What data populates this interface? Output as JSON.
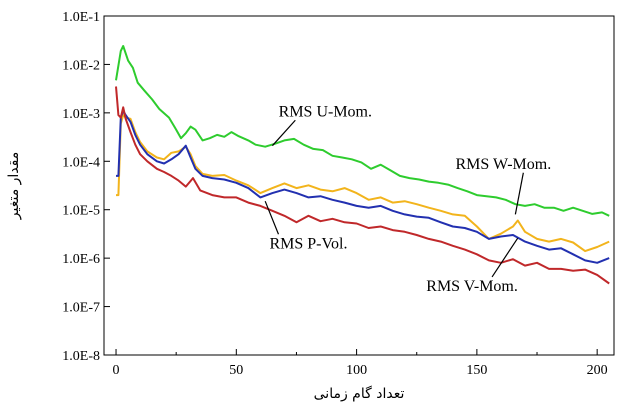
{
  "chart_data": {
    "type": "line",
    "title": "",
    "xlabel": "تعداد گام زمانی",
    "ylabel": "مقدار متغیر",
    "y_scale": "log",
    "xlim": [
      -5,
      207
    ],
    "ylim": [
      1e-08,
      0.1
    ],
    "x_ticks": [
      0,
      50,
      100,
      150,
      200
    ],
    "x_tick_labels": [
      "0",
      "50",
      "100",
      "150",
      "200"
    ],
    "y_ticks": [
      1e-08,
      1e-07,
      1e-06,
      1e-05,
      0.0001,
      0.001,
      0.01,
      0.1
    ],
    "y_tick_labels": [
      "1.0E-8",
      "1.0E-7",
      "1.0E-6",
      "1.0E-5",
      "1.0E-4",
      "1.0E-3",
      "1.0E-2",
      "1.0E-1"
    ],
    "grid": false,
    "series": [
      {
        "name": "RMS U-Mom.",
        "color": "#2ecc2e",
        "points": [
          [
            0,
            0.0047
          ],
          [
            2,
            0.019
          ],
          [
            3,
            0.024
          ],
          [
            5,
            0.012
          ],
          [
            7,
            0.0085
          ],
          [
            9,
            0.0042
          ],
          [
            12,
            0.0028
          ],
          [
            15,
            0.0019
          ],
          [
            18,
            0.0012
          ],
          [
            22,
            0.0008
          ],
          [
            25,
            0.00045
          ],
          [
            27,
            0.0003
          ],
          [
            29,
            0.00038
          ],
          [
            31,
            0.00052
          ],
          [
            33,
            0.00045
          ],
          [
            36,
            0.00027
          ],
          [
            39,
            0.0003
          ],
          [
            42,
            0.00035
          ],
          [
            45,
            0.00032
          ],
          [
            48,
            0.0004
          ],
          [
            51,
            0.00033
          ],
          [
            55,
            0.00027
          ],
          [
            58,
            0.00022
          ],
          [
            62,
            0.0002
          ],
          [
            66,
            0.00023
          ],
          [
            70,
            0.00027
          ],
          [
            74,
            0.00029
          ],
          [
            78,
            0.00022
          ],
          [
            82,
            0.00018
          ],
          [
            86,
            0.00017
          ],
          [
            90,
            0.00013
          ],
          [
            94,
            0.00012
          ],
          [
            98,
            0.00011
          ],
          [
            102,
            9.5e-05
          ],
          [
            106,
            7e-05
          ],
          [
            110,
            8.5e-05
          ],
          [
            114,
            6.5e-05
          ],
          [
            118,
            5e-05
          ],
          [
            122,
            4.5e-05
          ],
          [
            126,
            4.2e-05
          ],
          [
            130,
            3.8e-05
          ],
          [
            134,
            3.6e-05
          ],
          [
            138,
            3.3e-05
          ],
          [
            142,
            2.8e-05
          ],
          [
            146,
            2.4e-05
          ],
          [
            150,
            2e-05
          ],
          [
            154,
            1.9e-05
          ],
          [
            158,
            1.8e-05
          ],
          [
            162,
            1.6e-05
          ],
          [
            166,
            1.3e-05
          ],
          [
            170,
            1.2e-05
          ],
          [
            174,
            1.3e-05
          ],
          [
            178,
            1.1e-05
          ],
          [
            182,
            1.1e-05
          ],
          [
            186,
            9.5e-06
          ],
          [
            190,
            1.1e-05
          ],
          [
            194,
            9.5e-06
          ],
          [
            198,
            8.2e-06
          ],
          [
            202,
            8.8e-06
          ],
          [
            205,
            7.5e-06
          ]
        ]
      },
      {
        "name": "RMS W-Mom.",
        "color": "#f2b41c",
        "points": [
          [
            0,
            2e-05
          ],
          [
            1,
            2e-05
          ],
          [
            2,
            0.0006
          ],
          [
            3,
            0.0009
          ],
          [
            4,
            0.0008
          ],
          [
            6,
            0.00075
          ],
          [
            8,
            0.0004
          ],
          [
            10,
            0.00025
          ],
          [
            13,
            0.00016
          ],
          [
            17,
            0.00012
          ],
          [
            20,
            0.00011
          ],
          [
            23,
            0.00015
          ],
          [
            26,
            0.00016
          ],
          [
            29,
            0.0002
          ],
          [
            31,
            0.00014
          ],
          [
            33,
            8e-05
          ],
          [
            36,
            5.5e-05
          ],
          [
            40,
            5e-05
          ],
          [
            45,
            5.2e-05
          ],
          [
            50,
            4e-05
          ],
          [
            55,
            3.2e-05
          ],
          [
            60,
            2.2e-05
          ],
          [
            65,
            2.8e-05
          ],
          [
            70,
            3.5e-05
          ],
          [
            75,
            2.8e-05
          ],
          [
            80,
            3.2e-05
          ],
          [
            85,
            2.6e-05
          ],
          [
            90,
            2.4e-05
          ],
          [
            95,
            2.8e-05
          ],
          [
            100,
            2.2e-05
          ],
          [
            105,
            1.6e-05
          ],
          [
            110,
            1.8e-05
          ],
          [
            115,
            1.4e-05
          ],
          [
            120,
            1.5e-05
          ],
          [
            125,
            1.3e-05
          ],
          [
            130,
            1.1e-05
          ],
          [
            135,
            9.5e-06
          ],
          [
            140,
            8e-06
          ],
          [
            145,
            7.5e-06
          ],
          [
            150,
            4.5e-06
          ],
          [
            155,
            2.5e-06
          ],
          [
            160,
            3.2e-06
          ],
          [
            165,
            4.5e-06
          ],
          [
            167,
            6e-06
          ],
          [
            170,
            3.5e-06
          ],
          [
            175,
            2.5e-06
          ],
          [
            180,
            2.2e-06
          ],
          [
            185,
            2.5e-06
          ],
          [
            190,
            2.1e-06
          ],
          [
            195,
            1.4e-06
          ],
          [
            200,
            1.7e-06
          ],
          [
            205,
            2.2e-06
          ]
        ]
      },
      {
        "name": "RMS V-Mom.",
        "color": "#2230b0",
        "points": [
          [
            0,
            5e-05
          ],
          [
            1,
            5e-05
          ],
          [
            2,
            0.0008
          ],
          [
            3,
            0.0011
          ],
          [
            4,
            0.0009
          ],
          [
            6,
            0.00065
          ],
          [
            8,
            0.00035
          ],
          [
            10,
            0.00022
          ],
          [
            13,
            0.00014
          ],
          [
            17,
            0.0001
          ],
          [
            20,
            9e-05
          ],
          [
            23,
            0.00011
          ],
          [
            26,
            0.00014
          ],
          [
            29,
            0.00021
          ],
          [
            31,
            0.00012
          ],
          [
            33,
            7e-05
          ],
          [
            36,
            5e-05
          ],
          [
            40,
            4.5e-05
          ],
          [
            45,
            4.2e-05
          ],
          [
            50,
            3.6e-05
          ],
          [
            55,
            2.8e-05
          ],
          [
            60,
            1.8e-05
          ],
          [
            65,
            2.2e-05
          ],
          [
            70,
            2.6e-05
          ],
          [
            75,
            2.2e-05
          ],
          [
            80,
            1.8e-05
          ],
          [
            85,
            1.9e-05
          ],
          [
            90,
            1.6e-05
          ],
          [
            95,
            1.4e-05
          ],
          [
            100,
            1.2e-05
          ],
          [
            105,
            1.1e-05
          ],
          [
            110,
            1.2e-05
          ],
          [
            115,
            9.5e-06
          ],
          [
            120,
            8e-06
          ],
          [
            125,
            7.2e-06
          ],
          [
            130,
            6.8e-06
          ],
          [
            135,
            5.5e-06
          ],
          [
            140,
            4.5e-06
          ],
          [
            145,
            4.2e-06
          ],
          [
            150,
            3.5e-06
          ],
          [
            155,
            2.5e-06
          ],
          [
            160,
            2.8e-06
          ],
          [
            165,
            3e-06
          ],
          [
            170,
            2.2e-06
          ],
          [
            175,
            1.8e-06
          ],
          [
            180,
            1.5e-06
          ],
          [
            185,
            1.6e-06
          ],
          [
            190,
            1.2e-06
          ],
          [
            195,
            9e-07
          ],
          [
            200,
            8e-07
          ],
          [
            205,
            1e-06
          ]
        ]
      },
      {
        "name": "RMS P-Vol.",
        "color": "#c0282a",
        "points": [
          [
            0,
            0.0035
          ],
          [
            1,
            0.0009
          ],
          [
            2,
            0.0008
          ],
          [
            3,
            0.0013
          ],
          [
            4,
            0.00075
          ],
          [
            6,
            0.0004
          ],
          [
            8,
            0.00022
          ],
          [
            10,
            0.00014
          ],
          [
            13,
            0.0001
          ],
          [
            17,
            7e-05
          ],
          [
            20,
            6e-05
          ],
          [
            23,
            5e-05
          ],
          [
            26,
            4e-05
          ],
          [
            29,
            3e-05
          ],
          [
            32,
            4.5e-05
          ],
          [
            35,
            2.5e-05
          ],
          [
            40,
            2e-05
          ],
          [
            45,
            1.8e-05
          ],
          [
            50,
            1.8e-05
          ],
          [
            55,
            1.4e-05
          ],
          [
            60,
            1.2e-05
          ],
          [
            65,
            9.5e-06
          ],
          [
            70,
            7.5e-06
          ],
          [
            75,
            5.5e-06
          ],
          [
            80,
            7.5e-06
          ],
          [
            85,
            5.8e-06
          ],
          [
            90,
            6.5e-06
          ],
          [
            95,
            5.5e-06
          ],
          [
            100,
            5.2e-06
          ],
          [
            105,
            4.2e-06
          ],
          [
            110,
            4.5e-06
          ],
          [
            115,
            3.8e-06
          ],
          [
            120,
            3.5e-06
          ],
          [
            125,
            3e-06
          ],
          [
            130,
            2.5e-06
          ],
          [
            135,
            2.2e-06
          ],
          [
            140,
            1.8e-06
          ],
          [
            145,
            1.5e-06
          ],
          [
            150,
            1.2e-06
          ],
          [
            155,
            9e-07
          ],
          [
            160,
            8e-07
          ],
          [
            165,
            9.5e-07
          ],
          [
            170,
            7e-07
          ],
          [
            175,
            8e-07
          ],
          [
            180,
            6e-07
          ],
          [
            185,
            6e-07
          ],
          [
            190,
            5.5e-07
          ],
          [
            195,
            5.8e-07
          ],
          [
            200,
            4.5e-07
          ],
          [
            205,
            3e-07
          ]
        ]
      }
    ],
    "annotations": [
      {
        "text": "RMS U-Mom.",
        "at": [
          87,
          0.00085
        ],
        "arrow_to": [
          65,
          0.00021
        ]
      },
      {
        "text": "RMS W-Mom.",
        "at": [
          161,
          7e-05
        ],
        "arrow_to": [
          166,
          8e-06
        ]
      },
      {
        "text": "RMS P-Vol.",
        "at": [
          80,
          1.6e-06
        ],
        "arrow_to": [
          62,
          1.5e-05
        ]
      },
      {
        "text": "RMS V-Mom.",
        "at": [
          148,
          2.1e-07
        ],
        "arrow_to": [
          167,
          2.6e-06
        ]
      }
    ]
  }
}
